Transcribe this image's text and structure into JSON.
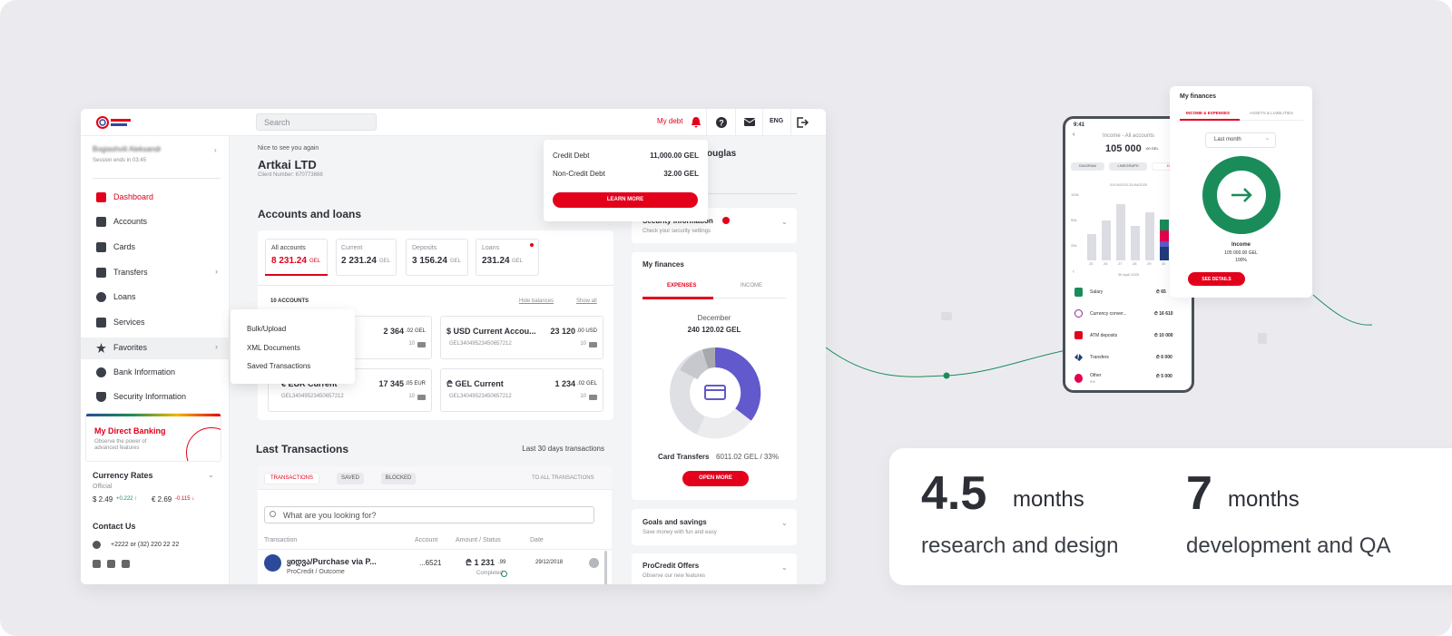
{
  "header": {
    "search_placeholder": "Search",
    "debt_link": "My debt",
    "language": "ENG"
  },
  "sidebar": {
    "user_name": "Bogiashvili Aleksandr",
    "session": "Session ends in 03:45",
    "menu": [
      "Dashboard",
      "Accounts",
      "Cards",
      "Transfers",
      "Loans",
      "Services",
      "Favorites",
      "Bank Information",
      "Security Information"
    ],
    "promo_title": "My Direct Banking",
    "promo_text": "Observe the power of advanced features",
    "currency_title": "Currency Rates",
    "currency_label": "Official",
    "rates": [
      {
        "rate": "$ 2.49",
        "change": "+0.222 ↑"
      },
      {
        "rate": "€ 2.69",
        "change": "-0.115 ↓"
      }
    ],
    "contact_title": "Contact Us",
    "phone": "+2222 or (32) 220 22 22"
  },
  "favorites_menu": [
    "Bulk/Upload",
    "XML Documents",
    "Saved Transactions"
  ],
  "client": {
    "greeting": "Nice to see you again",
    "name": "Artkai LTD",
    "number": "Client Number: 670773668"
  },
  "user_partial": "ouglas",
  "debt_popup": {
    "rows": [
      {
        "label": "Credit Debt",
        "amount": "11,000.00 GEL"
      },
      {
        "label": "Non-Credit Debt",
        "amount": "32.00 GEL"
      }
    ],
    "button": "LEARN MORE"
  },
  "accounts": {
    "title": "Accounts and loans",
    "tabs": [
      {
        "label": "All accounts",
        "amount": "8 231.24",
        "currency": "GEL"
      },
      {
        "label": "Current",
        "amount": "2 231.24",
        "currency": "GEL"
      },
      {
        "label": "Deposits",
        "amount": "3 156.24",
        "currency": "GEL"
      },
      {
        "label": "Loans",
        "amount": "231.24",
        "currency": "GEL"
      }
    ],
    "count": "10 ACCOUNTS",
    "hide_balances": "Hide balances",
    "show_all": "Show all",
    "cards": [
      {
        "amount": "2 364",
        "fraction": ".02 GEL",
        "count": "10"
      },
      {
        "name": "$ USD Current Accou...",
        "iban": "GEL34049523450657212",
        "amount": "23 120",
        "fraction": ".00 USD",
        "count": "10"
      },
      {
        "name": "€ EUR Current",
        "iban": "GEL34049523450657212",
        "amount": "17 345",
        "fraction": ".05 EUR",
        "count": "10"
      },
      {
        "name": "₾ GEL Current",
        "iban": "GEL34049523450657212",
        "amount": "1 234",
        "fraction": ".02 GEL",
        "count": "10"
      }
    ]
  },
  "transactions": {
    "title": "Last Transactions",
    "period": "Last 30 days transactions",
    "tabs": [
      "TRANSACTIONS",
      "SAVED",
      "BLOCKED"
    ],
    "all_link": "TO ALL TRANSACTIONS",
    "search_placeholder": "What are you looking for?",
    "columns": [
      "Transaction",
      "Account",
      "Amount / Status",
      "Date"
    ],
    "rows": [
      {
        "name": "ყიდვა/Purchase via P...",
        "type": "ProCredit / Outcome",
        "account": "...6521",
        "amount": "₾ 1 231",
        "fraction": ".99",
        "status": "Completed",
        "date": "29/12/2018"
      }
    ]
  },
  "security": {
    "title": "Security information",
    "subtitle": "Check your security settings"
  },
  "my_finances": {
    "title": "My finances",
    "tabs": [
      "EXPENSES",
      "INCOME"
    ],
    "month": "December",
    "total": "240 120.02 GEL",
    "category": "Card Transfers",
    "category_value": "6011.02 GEL / 33%",
    "button": "OPEN MORE"
  },
  "goals": {
    "title": "Goals and savings",
    "subtitle": "Save money with fun and easy"
  },
  "offers": {
    "title": "ProCredit Offers",
    "subtitle": "Observe our new features"
  },
  "phone": {
    "time": "9:41",
    "title": "Income - All accounts",
    "amount": "105 000",
    "fraction": ".00 GEL",
    "chips": [
      "DIAGRAM",
      "LINEGRAPH",
      "DIAG"
    ],
    "period": "01/04/2020-31/04/2020",
    "y_labels": [
      "100k",
      "50k",
      "20k"
    ],
    "x_labels": [
      "25",
      "26",
      "27",
      "28",
      "29",
      "30"
    ],
    "date": "30 April 2020",
    "items": [
      {
        "name": "Salary",
        "amount": "₾ 65"
      },
      {
        "name": "Currency conver...",
        "amount": "₾ 16 610"
      },
      {
        "name": "ATM deposits",
        "amount": "₾ 10 000"
      },
      {
        "name": "Transfers",
        "amount": "₾ 6 000"
      },
      {
        "name": "Other",
        "amount": "₾ 5 000",
        "note": "5%"
      }
    ]
  },
  "finance_card": {
    "title": "My finances",
    "tabs": [
      "INCOME & EXPENSES",
      "ASSETS & LIABILITIES"
    ],
    "period": "Last month",
    "label": "Income",
    "amount": "105 000.00 GEL",
    "share": "100%",
    "button": "SEE DETAILS"
  },
  "stats": [
    {
      "value": "4.5",
      "unit": "months",
      "label": "research and design"
    },
    {
      "value": "7",
      "unit": "months",
      "label": "development and QA"
    }
  ]
}
